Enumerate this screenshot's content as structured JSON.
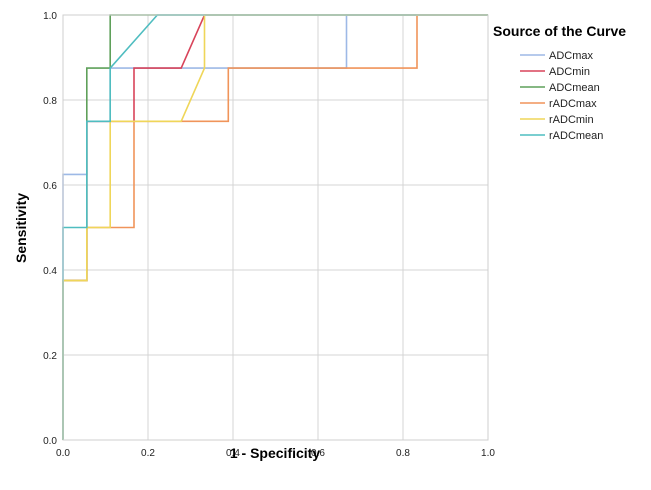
{
  "chart_data": {
    "type": "line",
    "xlabel": "1 - Specificity",
    "ylabel": "Sensitivity",
    "xlim": [
      0,
      1
    ],
    "ylim": [
      0,
      1
    ],
    "x_ticks": [
      "0.0",
      "0.2",
      "0.4",
      "0.6",
      "0.8",
      "1.0"
    ],
    "y_ticks": [
      "0.0",
      "0.2",
      "0.4",
      "0.6",
      "0.8",
      "1.0"
    ],
    "grid": true,
    "legend": {
      "title": "Source of the Curve",
      "position": "right"
    },
    "series": [
      {
        "name": "ADCmax",
        "color": "#9db9e6",
        "x": [
          0,
          0,
          0.056,
          0.056,
          0.111,
          0.111,
          0.278,
          0.278,
          0.333,
          0.667,
          0.667,
          1
        ],
        "y": [
          0,
          0.625,
          0.625,
          0.75,
          0.75,
          0.875,
          0.875,
          0.875,
          0.875,
          0.875,
          1,
          1
        ]
      },
      {
        "name": "ADCmin",
        "color": "#d8445a",
        "x": [
          0,
          0,
          0.056,
          0.056,
          0.167,
          0.167,
          0.278,
          0.333,
          1
        ],
        "y": [
          0,
          0.375,
          0.375,
          0.75,
          0.75,
          0.875,
          0.875,
          1,
          1
        ]
      },
      {
        "name": "ADCmean",
        "color": "#5fa05a",
        "x": [
          0,
          0,
          0.056,
          0.056,
          0.111,
          0.111,
          1
        ],
        "y": [
          0,
          0.375,
          0.375,
          0.875,
          0.875,
          1,
          1
        ]
      },
      {
        "name": "rADCmax",
        "color": "#f0945a",
        "x": [
          0,
          0,
          0.056,
          0.056,
          0.167,
          0.167,
          0.389,
          0.389,
          0.833,
          0.833,
          1
        ],
        "y": [
          0,
          0.375,
          0.375,
          0.5,
          0.5,
          0.75,
          0.75,
          0.875,
          0.875,
          1,
          1
        ]
      },
      {
        "name": "rADCmin",
        "color": "#efd659",
        "x": [
          0,
          0,
          0.056,
          0.056,
          0.111,
          0.111,
          0.278,
          0.333,
          0.333,
          1
        ],
        "y": [
          0,
          0.375,
          0.375,
          0.5,
          0.5,
          0.75,
          0.75,
          0.875,
          1,
          1
        ]
      },
      {
        "name": "rADCmean",
        "color": "#4fbdc0",
        "x": [
          0,
          0,
          0.056,
          0.056,
          0.111,
          0.111,
          0.222,
          1
        ],
        "y": [
          0,
          0.5,
          0.5,
          0.75,
          0.75,
          0.875,
          1,
          1
        ]
      }
    ]
  }
}
